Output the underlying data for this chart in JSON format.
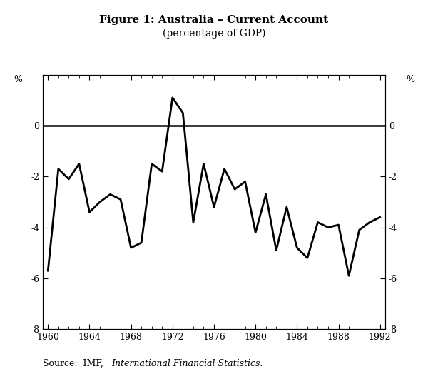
{
  "title_line1": "Figure 1: Australia – Current Account",
  "title_line2": "(percentage of GDP)",
  "source_normal": "Source:  IMF, ",
  "source_italic": "International Financial Statistics.",
  "years": [
    1960,
    1961,
    1962,
    1963,
    1964,
    1965,
    1966,
    1967,
    1968,
    1969,
    1970,
    1971,
    1972,
    1973,
    1974,
    1975,
    1976,
    1977,
    1978,
    1979,
    1980,
    1981,
    1982,
    1983,
    1984,
    1985,
    1986,
    1987,
    1988,
    1989,
    1990,
    1991,
    1992
  ],
  "values": [
    -5.7,
    -1.7,
    -2.1,
    -1.5,
    -3.4,
    -3.0,
    -2.7,
    -2.9,
    -4.8,
    -4.6,
    -1.5,
    -1.8,
    1.1,
    0.5,
    -3.8,
    -1.5,
    -3.2,
    -1.7,
    -2.5,
    -2.2,
    -4.2,
    -2.7,
    -4.9,
    -3.2,
    -4.8,
    -5.2,
    -3.8,
    -4.0,
    -3.9,
    -5.9,
    -4.1,
    -3.8,
    -3.6
  ],
  "xlim": [
    1959.5,
    1992.5
  ],
  "ylim": [
    -8,
    2
  ],
  "yticks": [
    -8,
    -6,
    -4,
    -2,
    0
  ],
  "xticks": [
    1960,
    1964,
    1968,
    1972,
    1976,
    1980,
    1984,
    1988,
    1992
  ],
  "line_color": "#000000",
  "line_width": 2.0,
  "background_color": "#ffffff",
  "title_fontsize": 11,
  "subtitle_fontsize": 10,
  "tick_fontsize": 9,
  "source_fontsize": 9
}
